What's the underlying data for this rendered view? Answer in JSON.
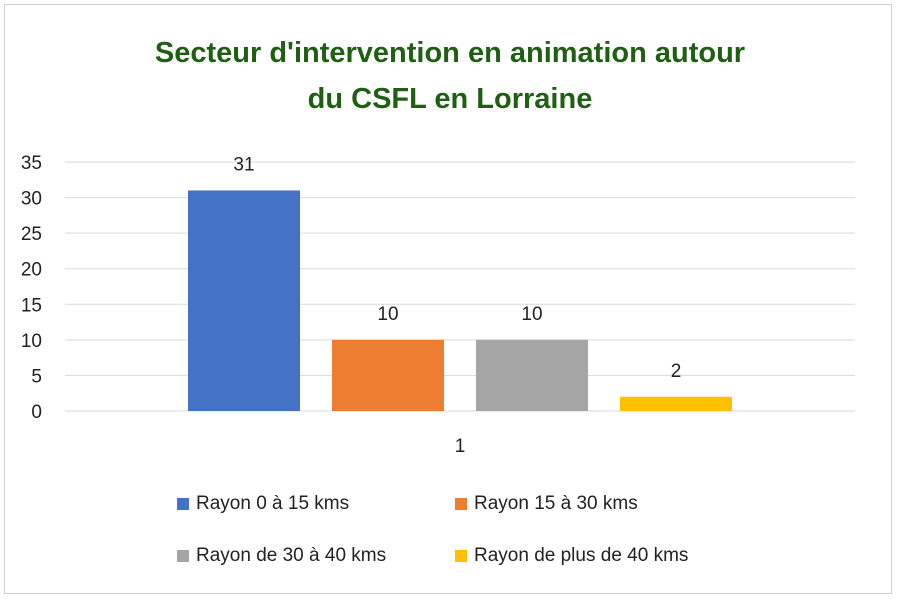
{
  "chart_data": {
    "type": "bar",
    "title_lines": [
      "Secteur d'intervention en animation autour",
      "du CSFL en Lorraine"
    ],
    "categories": [
      "1"
    ],
    "series": [
      {
        "name": "Rayon 0 à 15 kms",
        "values": [
          31
        ],
        "color": "#4472C4"
      },
      {
        "name": "Rayon 15 à 30 kms",
        "values": [
          10
        ],
        "color": "#ED7D31"
      },
      {
        "name": "Rayon de 30 à 40 kms",
        "values": [
          10
        ],
        "color": "#A5A5A5"
      },
      {
        "name": "Rayon de plus de 40 kms",
        "values": [
          2
        ],
        "color": "#FFC000"
      }
    ],
    "ylim": [
      0,
      35
    ],
    "yticks": [
      0,
      5,
      10,
      15,
      20,
      25,
      30,
      35
    ],
    "grid": true,
    "legend_position": "bottom",
    "data_labels": true
  },
  "colors": {
    "title": "#1f5f14",
    "grid": "#d9d9d9"
  }
}
